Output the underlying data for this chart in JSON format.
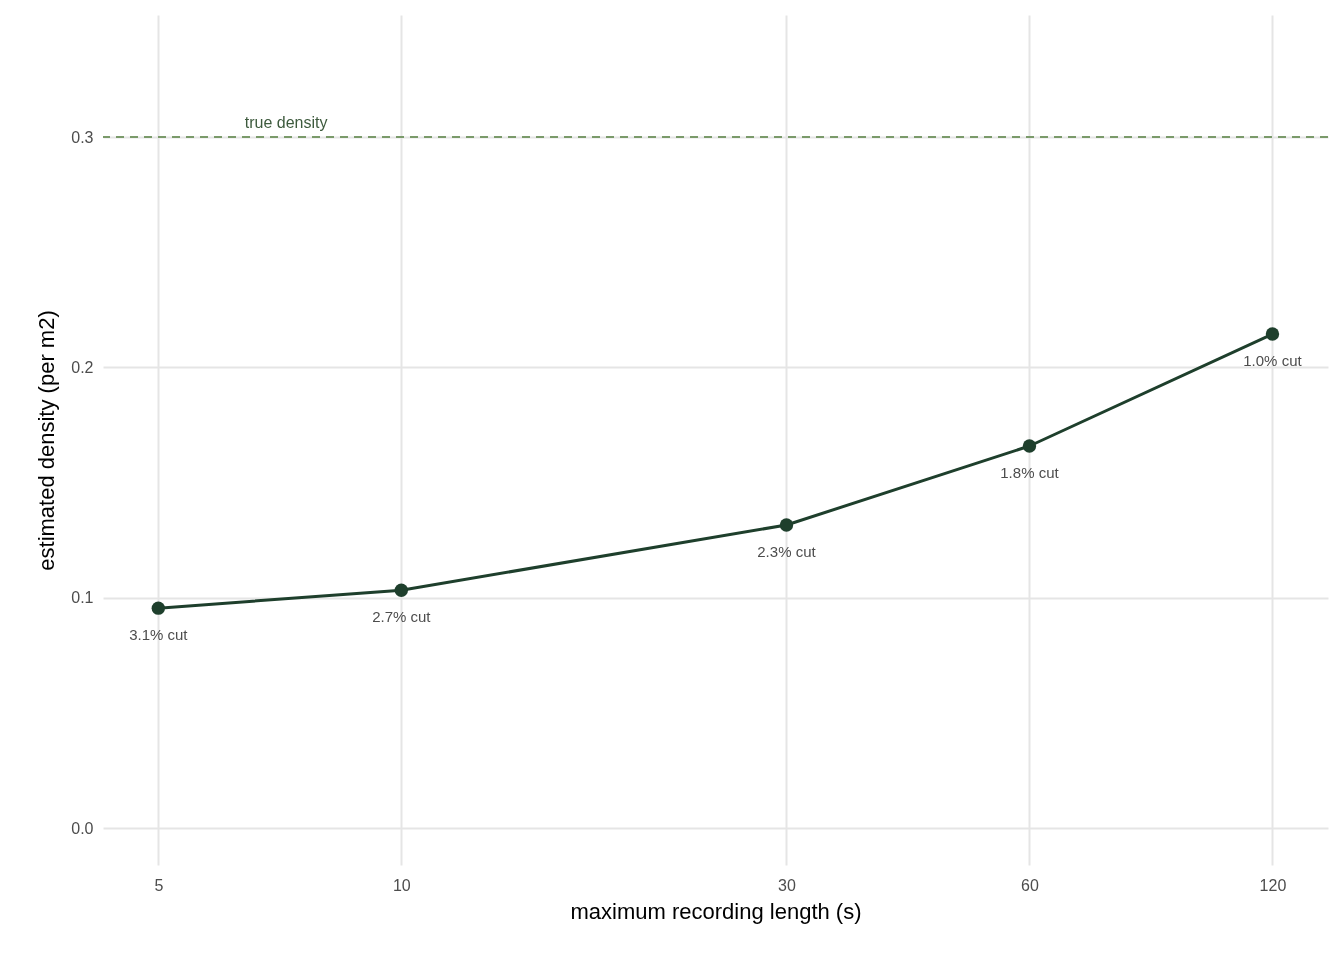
{
  "chart_data": {
    "type": "line",
    "xlabel": "maximum recording length (s)",
    "ylabel": "estimated density (per m2)",
    "x": [
      5,
      10,
      30,
      60,
      120
    ],
    "series": [
      {
        "color": "#1e3f2c",
        "values": [
          0.0955,
          0.1033,
          0.1316,
          0.1659,
          0.2145
        ]
      }
    ],
    "log": "x",
    "xlim": [
      4.27,
      140.6
    ],
    "xticks": [
      5,
      10,
      30,
      60,
      120
    ],
    "ylim": [
      -0.016,
      0.353
    ],
    "yticks": [
      {
        "value": 0,
        "label": "0.0"
      },
      0.1,
      0.2,
      0.3
    ],
    "ref_lines": [
      {
        "axis": "y",
        "value": 0.3,
        "color": "#7a9a6a",
        "line_style": "dashed"
      }
    ],
    "annotations": [
      {
        "text": "true density",
        "x": 7.2,
        "y": 0.3
      },
      {
        "text": "3.1% cut",
        "x": 5,
        "y": 0.0955
      },
      {
        "text": "2.7% cut",
        "x": 10,
        "y": 0.1033
      },
      {
        "text": "2.3% cut",
        "x": 30,
        "y": 0.1316
      },
      {
        "text": "1.8% cut",
        "x": 60,
        "y": 0.1659
      },
      {
        "text": "1.0% cut",
        "x": 120,
        "y": 0.2145
      }
    ],
    "grid": true,
    "marker": "circle",
    "line_style": "solid"
  }
}
